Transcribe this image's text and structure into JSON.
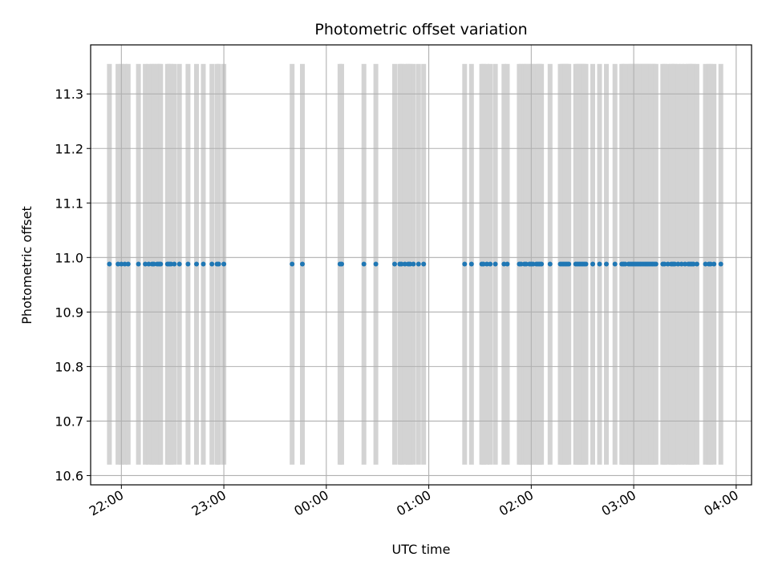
{
  "chart_data": {
    "type": "scatter",
    "title": "Photometric offset variation",
    "xlabel": "UTC time",
    "ylabel": "Photometric offset",
    "xlim": [
      "21:42",
      "04:09"
    ],
    "ylim": [
      10.583,
      11.39
    ],
    "grid": true,
    "x_ticks": [
      "22:00",
      "23:00",
      "00:00",
      "01:00",
      "02:00",
      "03:00",
      "04:00"
    ],
    "y_ticks": [
      "10.6",
      "10.7",
      "10.8",
      "10.9",
      "11.0",
      "11.1",
      "11.2",
      "11.3"
    ],
    "band_range": [
      10.62,
      11.355
    ],
    "series_color": "#1f77b4",
    "band_color": "#d3d3d3",
    "x": [
      "21:53",
      "21:58",
      "22:00",
      "22:02",
      "22:04",
      "22:10",
      "22:14",
      "22:16",
      "22:18",
      "22:19",
      "22:21",
      "22:22",
      "22:23",
      "22:27",
      "22:28",
      "22:29",
      "22:31",
      "22:34",
      "22:39",
      "22:44",
      "22:48",
      "22:53",
      "22:56",
      "22:57",
      "23:00",
      "23:40",
      "23:46",
      "00:08",
      "00:09",
      "00:22",
      "00:29",
      "00:40",
      "00:43",
      "00:44",
      "00:46",
      "00:48",
      "00:49",
      "00:51",
      "00:54",
      "00:57",
      "01:21",
      "01:25",
      "01:31",
      "01:32",
      "01:34",
      "01:36",
      "01:39",
      "01:44",
      "01:46",
      "01:53",
      "01:54",
      "01:56",
      "01:57",
      "01:59",
      "02:00",
      "02:01",
      "02:03",
      "02:04",
      "02:05",
      "02:06",
      "02:11",
      "02:17",
      "02:18",
      "02:19",
      "02:20",
      "02:21",
      "02:22",
      "02:26",
      "02:27",
      "02:28",
      "02:29",
      "02:30",
      "02:31",
      "02:32",
      "02:36",
      "02:40",
      "02:44",
      "02:49",
      "02:53",
      "02:54",
      "02:55",
      "02:57",
      "02:58",
      "02:59",
      "03:00",
      "03:01",
      "03:02",
      "03:03",
      "03:04",
      "03:05",
      "03:06",
      "03:07",
      "03:08",
      "03:09",
      "03:10",
      "03:11",
      "03:12",
      "03:13",
      "03:17",
      "03:18",
      "03:20",
      "03:22",
      "03:23",
      "03:24",
      "03:26",
      "03:28",
      "03:30",
      "03:32",
      "03:33",
      "03:34",
      "03:35",
      "03:37",
      "03:42",
      "03:44",
      "03:45",
      "03:47",
      "03:51"
    ],
    "y": [
      10.988,
      10.988,
      10.988,
      10.988,
      10.988,
      10.988,
      10.988,
      10.988,
      10.988,
      10.988,
      10.988,
      10.988,
      10.988,
      10.988,
      10.988,
      10.988,
      10.988,
      10.988,
      10.988,
      10.988,
      10.988,
      10.988,
      10.988,
      10.988,
      10.988,
      10.988,
      10.988,
      10.988,
      10.988,
      10.988,
      10.988,
      10.988,
      10.988,
      10.988,
      10.988,
      10.988,
      10.988,
      10.988,
      10.988,
      10.988,
      10.988,
      10.988,
      10.988,
      10.988,
      10.988,
      10.988,
      10.988,
      10.988,
      10.988,
      10.988,
      10.988,
      10.988,
      10.988,
      10.988,
      10.988,
      10.988,
      10.988,
      10.988,
      10.988,
      10.988,
      10.988,
      10.988,
      10.988,
      10.988,
      10.988,
      10.988,
      10.988,
      10.988,
      10.988,
      10.988,
      10.988,
      10.988,
      10.988,
      10.988,
      10.988,
      10.988,
      10.988,
      10.988,
      10.988,
      10.988,
      10.988,
      10.988,
      10.988,
      10.988,
      10.988,
      10.988,
      10.988,
      10.988,
      10.988,
      10.988,
      10.988,
      10.988,
      10.988,
      10.988,
      10.988,
      10.988,
      10.988,
      10.988,
      10.988,
      10.988,
      10.988,
      10.988,
      10.988,
      10.988,
      10.988,
      10.988,
      10.988,
      10.988,
      10.988,
      10.988,
      10.988,
      10.988,
      10.988,
      10.988,
      10.988,
      10.988,
      10.988
    ]
  }
}
